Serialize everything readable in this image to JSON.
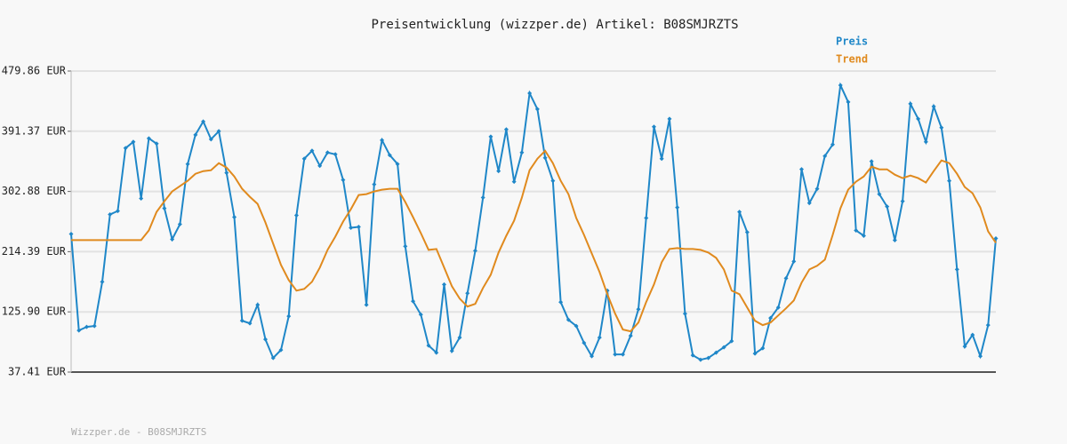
{
  "chart_data": {
    "type": "line",
    "title": "Preisentwicklung (wizzper.de) Artikel: B08SMJRZTS",
    "footer": "Wizzper.de - B08SMJRZTS",
    "legend": "top-right",
    "grid": true,
    "ylim": [
      37.41,
      479.86
    ],
    "yticks": [
      {
        "value": 37.41,
        "label": "37.41 EUR"
      },
      {
        "value": 125.9,
        "label": "125.90 EUR"
      },
      {
        "value": 214.39,
        "label": "214.39 EUR"
      },
      {
        "value": 302.88,
        "label": "302.88 EUR"
      },
      {
        "value": 391.37,
        "label": "391.37 EUR"
      },
      {
        "value": 479.86,
        "label": "479.86 EUR"
      }
    ],
    "categories": [
      null,
      null,
      null,
      null,
      null,
      null,
      null,
      null,
      null,
      null,
      null,
      null,
      null,
      null,
      null,
      null,
      null,
      null,
      null,
      null,
      null,
      null,
      null,
      null,
      null,
      null,
      null,
      null,
      null,
      null,
      null,
      null,
      null,
      null,
      null,
      null,
      null,
      null,
      null,
      null,
      null,
      null,
      null,
      null,
      null,
      null,
      null,
      null,
      null,
      null,
      null,
      null,
      null,
      null,
      null,
      null,
      null,
      null,
      null,
      null,
      null,
      null,
      null,
      null,
      null,
      null,
      null,
      null,
      null,
      null,
      null,
      null,
      null,
      null,
      null,
      null,
      null,
      null,
      null,
      null,
      null,
      null,
      null,
      null,
      null,
      null,
      null,
      null,
      null,
      null,
      null,
      null,
      null,
      null,
      null,
      null,
      null,
      null,
      null,
      null,
      null,
      null,
      null,
      null,
      null,
      null,
      null,
      null,
      null,
      null,
      null,
      null,
      null,
      null,
      null,
      null,
      null,
      null,
      null,
      null
    ],
    "series": [
      {
        "name": "Preis",
        "color": "#1f87c8",
        "markers": true,
        "values": [
          240.4,
          98.6,
          103.8,
          105.1,
          170.1,
          269.0,
          274.2,
          366.6,
          375.7,
          292.5,
          380.9,
          373.1,
          278.1,
          232.6,
          254.7,
          343.2,
          386.1,
          405.7,
          379.6,
          391.4,
          330.2,
          265.1,
          112.9,
          109.0,
          136.3,
          85.5,
          58.2,
          69.9,
          119.4,
          267.7,
          351.0,
          362.7,
          340.6,
          360.1,
          357.5,
          319.8,
          249.5,
          250.8,
          136.3,
          313.3,
          378.3,
          356.2,
          343.2,
          222.2,
          141.5,
          122.0,
          76.4,
          66.0,
          166.2,
          68.6,
          88.2,
          153.2,
          215.7,
          293.8,
          383.5,
          332.8,
          394.0,
          317.2,
          360.1,
          447.3,
          423.9,
          352.3,
          318.5,
          140.2,
          114.2,
          105.1,
          80.3,
          60.8,
          88.2,
          157.1,
          63.4,
          63.4,
          90.8,
          129.8,
          263.8,
          397.9,
          351.0,
          409.6,
          279.4,
          123.3,
          62.1,
          55.6,
          58.2,
          66.0,
          73.8,
          82.9,
          272.9,
          243.0,
          64.7,
          72.5,
          116.8,
          132.4,
          175.3,
          200.1,
          335.4,
          285.9,
          306.8,
          354.9,
          371.8,
          459.0,
          434.3,
          245.6,
          237.8,
          347.1,
          299.0,
          280.7,
          231.3,
          288.5,
          431.7,
          409.6,
          375.7,
          427.8,
          396.6,
          318.5,
          188.3,
          75.1,
          92.1,
          60.8,
          106.4,
          233.9
        ]
      },
      {
        "name": "Trend",
        "color": "#e08a1e",
        "markers": false,
        "values": [
          231.3,
          231.3,
          231.3,
          231.3,
          231.3,
          231.3,
          231.3,
          231.3,
          231.3,
          231.3,
          245.6,
          272.9,
          288.5,
          302.9,
          310.7,
          318.5,
          328.9,
          332.8,
          334.1,
          344.5,
          338.0,
          325.0,
          306.8,
          295.1,
          284.6,
          257.3,
          226.1,
          194.9,
          172.7,
          157.1,
          159.7,
          170.1,
          191.0,
          217.0,
          236.5,
          258.6,
          276.8,
          297.7,
          299.0,
          302.9,
          305.5,
          306.8,
          306.8,
          287.3,
          265.1,
          241.7,
          217.0,
          218.3,
          191.0,
          163.6,
          145.4,
          133.7,
          137.6,
          161.0,
          180.5,
          213.1,
          237.8,
          259.9,
          293.8,
          334.1,
          351.0,
          362.7,
          344.5,
          318.5,
          299.0,
          263.8,
          239.1,
          211.8,
          184.4,
          151.9,
          123.3,
          99.9,
          97.3,
          110.3,
          140.2,
          166.2,
          198.8,
          218.3,
          219.6,
          218.3,
          218.3,
          217.0,
          213.1,
          205.3,
          188.3,
          157.1,
          151.9,
          132.4,
          112.9,
          106.4,
          110.3,
          120.7,
          131.1,
          142.8,
          168.8,
          188.3,
          193.6,
          202.7,
          239.1,
          278.1,
          305.5,
          317.2,
          325.0,
          339.3,
          335.4,
          335.4,
          327.6,
          322.4,
          326.3,
          322.4,
          315.9,
          332.8,
          348.4,
          344.5,
          328.9,
          309.4,
          300.3,
          279.4,
          244.3,
          227.4
        ]
      }
    ]
  }
}
